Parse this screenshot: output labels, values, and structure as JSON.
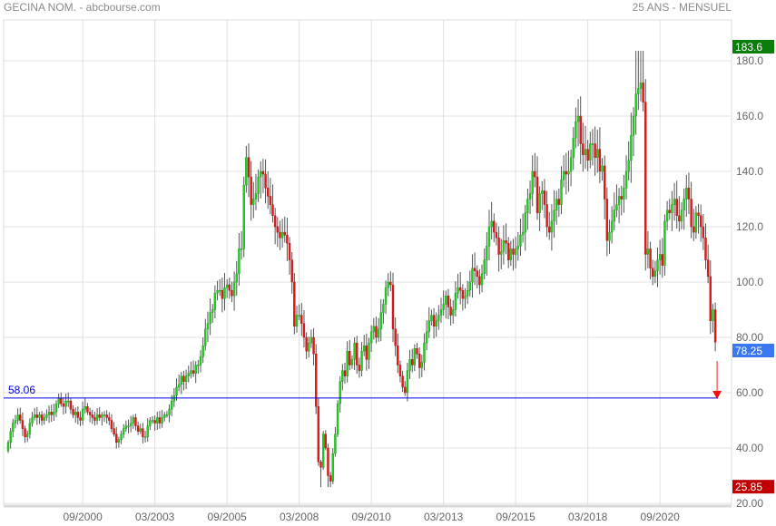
{
  "header": {
    "title": "GECINA NOM. - abcbourse.com",
    "period": "25 ANS - MENSUEL"
  },
  "chart_data": {
    "type": "candlestick",
    "interval": "monthly",
    "ylim": [
      20,
      190
    ],
    "grid": true,
    "y_ticks": [
      {
        "value": 20,
        "label": "20.00"
      },
      {
        "value": 40,
        "label": "40.00"
      },
      {
        "value": 60,
        "label": "60.00"
      },
      {
        "value": 80,
        "label": "80.00"
      },
      {
        "value": 100,
        "label": "100.0"
      },
      {
        "value": 120,
        "label": "120.0"
      },
      {
        "value": 140,
        "label": "140.0"
      },
      {
        "value": 160,
        "label": "160.0"
      },
      {
        "value": 180,
        "label": "180.0"
      }
    ],
    "x_ticks": [
      "09/2000",
      "03/2003",
      "09/2005",
      "03/2008",
      "09/2010",
      "03/2013",
      "09/2015",
      "03/2018",
      "09/2020"
    ],
    "markers": {
      "max": {
        "value": 183.6,
        "label": "183.6",
        "color": "#0a7d0a"
      },
      "min": {
        "value": 25.85,
        "label": "25.85",
        "color": "#c00000"
      },
      "last": {
        "value": 78.25,
        "label": "78.25",
        "color": "#3a78f2"
      },
      "reference_line": {
        "value": 58.06,
        "label": "58.06",
        "color": "#0000ee"
      }
    },
    "colors": {
      "up": "#22cc22",
      "down": "#e01818",
      "wick": "#555555",
      "arrow": "#ff6666"
    },
    "closes_by_year": {
      "1998": [
        42,
        46,
        49,
        50,
        52,
        50,
        47,
        44,
        45,
        49,
        51
      ],
      "1999": [
        52,
        51,
        52,
        50,
        51,
        52,
        53,
        52,
        53,
        56,
        58,
        56
      ],
      "2000": [
        55,
        57,
        57,
        54,
        52,
        53,
        51,
        50,
        54,
        55,
        53,
        52
      ],
      "2001": [
        51,
        50,
        52,
        51,
        52,
        52,
        51,
        50,
        47,
        45,
        42,
        43
      ],
      "2002": [
        45,
        47,
        48,
        48,
        49,
        51,
        48,
        46,
        47,
        44,
        44,
        48
      ],
      "2003": [
        50,
        50,
        49,
        51,
        49,
        51,
        52,
        52,
        54,
        57,
        59,
        62
      ],
      "2004": [
        63,
        66,
        64,
        66,
        67,
        68,
        67,
        70,
        70,
        73,
        77,
        83
      ],
      "2005": [
        85,
        89,
        90,
        96,
        97,
        97,
        94,
        98,
        99,
        97,
        95,
        100
      ],
      "2006": [
        103,
        112,
        112,
        135,
        145,
        138,
        128,
        130,
        132,
        138,
        140,
        139
      ],
      "2007": [
        134,
        131,
        128,
        124,
        120,
        118,
        116,
        118,
        117,
        114,
        108,
        100
      ],
      "2008": [
        84,
        88,
        88,
        85,
        80,
        75,
        78,
        80,
        74,
        55,
        35,
        33
      ],
      "2009": [
        45,
        40,
        30,
        28,
        38,
        45,
        56,
        64,
        68,
        66,
        75,
        70
      ],
      "2010": [
        72,
        78,
        70,
        68,
        75,
        77,
        72,
        78,
        82,
        84,
        80,
        83
      ],
      "2011": [
        89,
        92,
        98,
        100,
        99,
        83,
        77,
        70,
        66,
        62,
        60,
        68
      ],
      "2012": [
        72,
        70,
        76,
        74,
        69,
        71,
        78,
        82,
        86,
        88,
        84,
        86
      ],
      "2013": [
        88,
        90,
        92,
        95,
        91,
        88,
        90,
        96,
        98,
        97,
        94,
        95
      ],
      "2014": [
        97,
        100,
        105,
        104,
        102,
        99,
        103,
        108,
        113,
        120,
        122,
        118
      ],
      "2015": [
        116,
        110,
        111,
        115,
        114,
        108,
        112,
        110,
        112,
        113,
        117,
        118
      ],
      "2016": [
        125,
        130,
        132,
        140,
        138,
        125,
        132,
        133,
        128,
        120,
        118,
        122
      ],
      "2017": [
        126,
        130,
        128,
        137,
        140,
        139,
        140,
        145,
        152,
        158,
        160,
        150
      ],
      "2018": [
        146,
        148,
        144,
        150,
        150,
        145,
        148,
        140,
        142,
        130,
        115,
        118
      ],
      "2019": [
        122,
        126,
        128,
        131,
        130,
        134,
        140,
        144,
        153,
        160,
        168,
        170
      ],
      "2020": [
        172,
        165,
        110,
        112,
        105,
        102,
        104,
        108,
        110,
        106,
        122,
        126
      ],
      "2021": [
        125,
        128,
        130,
        124,
        122,
        126,
        130,
        134,
        130,
        120,
        118,
        125
      ],
      "2022": [
        124,
        120,
        116,
        108,
        102,
        86,
        90,
        78.25
      ]
    }
  }
}
